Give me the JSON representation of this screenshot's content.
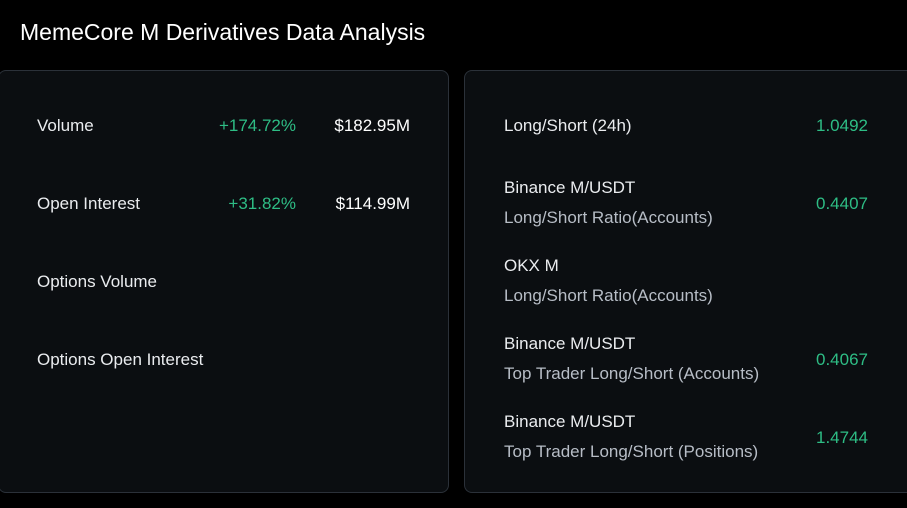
{
  "title": "MemeCore M Derivatives Data Analysis",
  "left_panel": {
    "rows": [
      {
        "label": "Volume",
        "change": "+174.72%",
        "value": "$182.95M"
      },
      {
        "label": "Open Interest",
        "change": "+31.82%",
        "value": "$114.99M"
      },
      {
        "label": "Options Volume"
      },
      {
        "label": "Options Open Interest"
      }
    ]
  },
  "right_panel": {
    "rows": [
      {
        "label": "Long/Short (24h)",
        "value": "1.0492"
      },
      {
        "label": "Binance M/USDT",
        "sublabel": "Long/Short Ratio(Accounts)",
        "value": "0.4407"
      },
      {
        "label": "OKX M",
        "sublabel": "Long/Short Ratio(Accounts)"
      },
      {
        "label": "Binance M/USDT",
        "sublabel": "Top Trader Long/Short (Accounts)",
        "value": "0.4067"
      },
      {
        "label": "Binance M/USDT",
        "sublabel": "Top Trader Long/Short (Positions)",
        "value": "1.4744"
      }
    ]
  },
  "colors": {
    "background": "#000000",
    "card": "#0b0e11",
    "border": "#2b3139",
    "positive": "#2ebd85",
    "text": "#eaecef",
    "subtext": "#b7bdc6"
  }
}
